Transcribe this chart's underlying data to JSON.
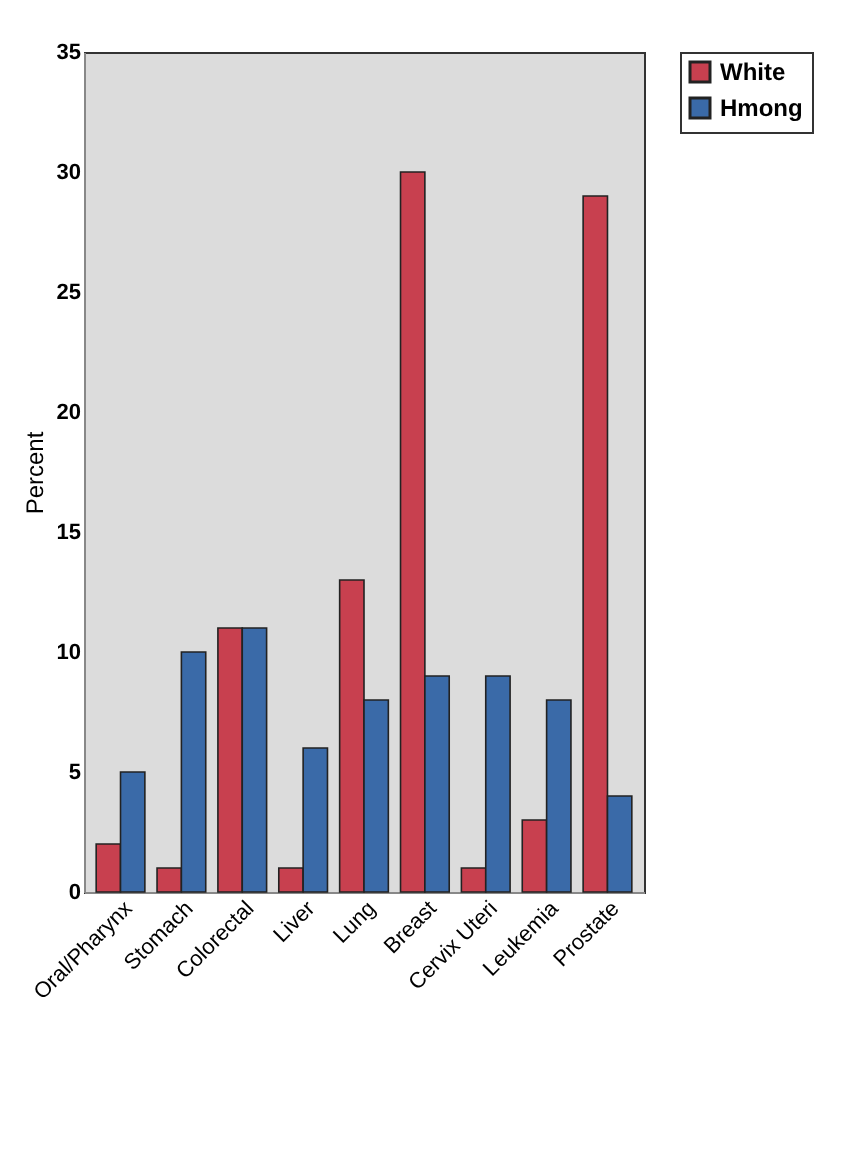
{
  "chart_data": {
    "type": "bar",
    "ylabel": "Percent",
    "categories": [
      "Oral/Pharynx",
      "Stomach",
      "Colorectal",
      "Liver",
      "Lung",
      "Breast",
      "Cervix Uteri",
      "Leukemia",
      "Prostate"
    ],
    "series": [
      {
        "name": "White",
        "color": "#c8404f",
        "values": [
          2,
          1,
          11,
          1,
          13,
          30,
          1,
          3,
          29
        ]
      },
      {
        "name": "Hmong",
        "color": "#3a6aa8",
        "values": [
          5,
          10,
          11,
          6,
          8,
          9,
          9,
          8,
          4
        ]
      }
    ],
    "ylim": [
      0,
      35
    ],
    "yticks": [
      0,
      5,
      10,
      15,
      20,
      25,
      30,
      35
    ],
    "grid": false,
    "legend": "right"
  }
}
